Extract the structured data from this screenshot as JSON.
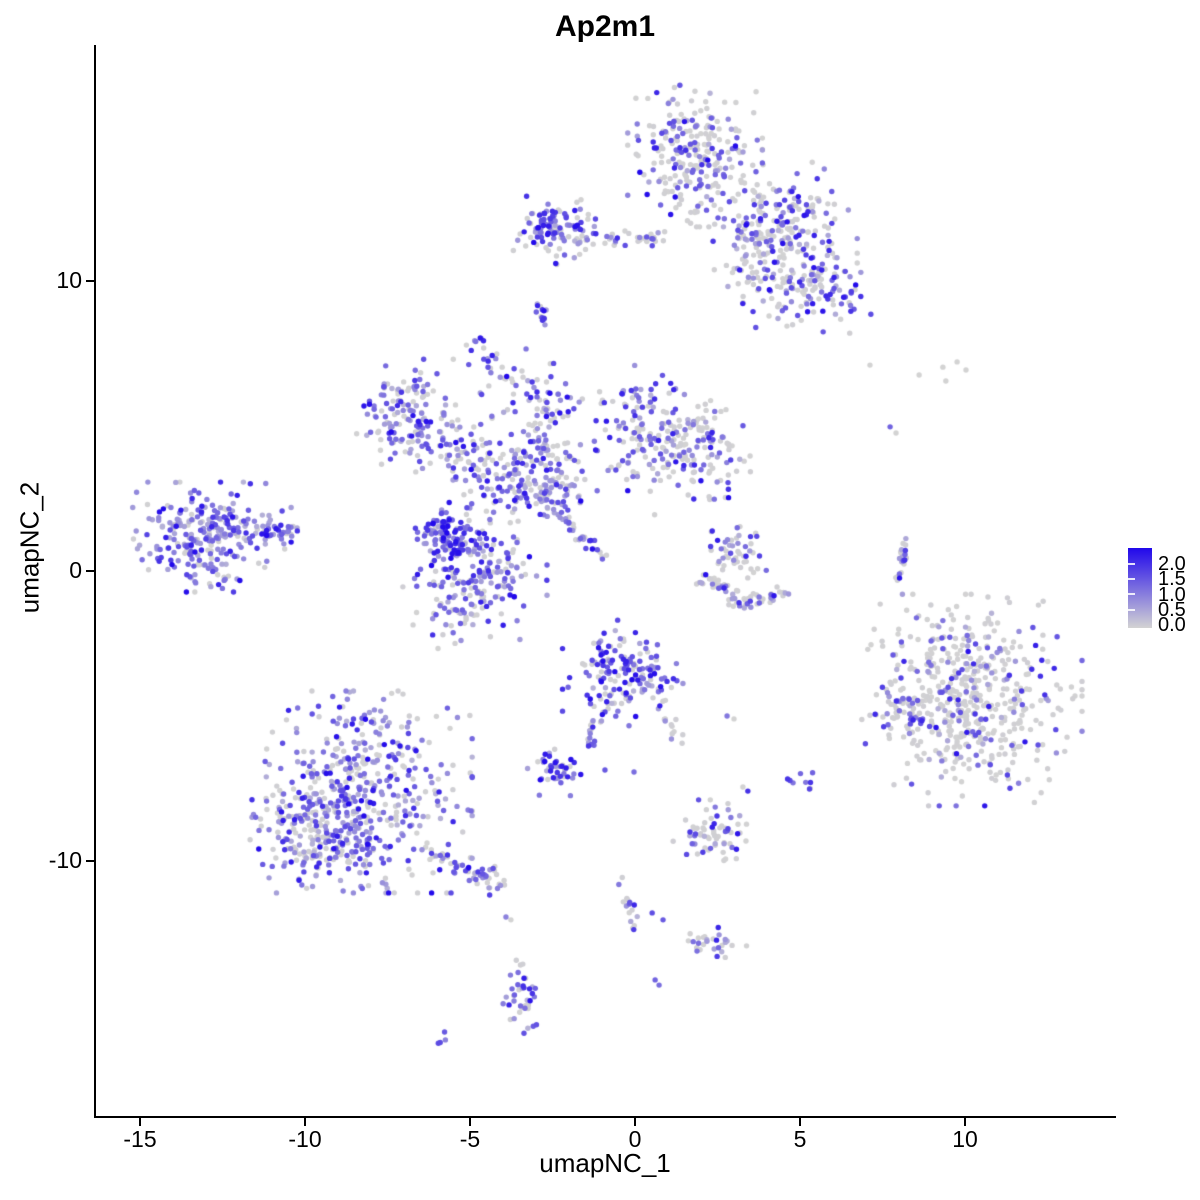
{
  "title": "Ap2m1",
  "axes": {
    "x": {
      "label": "umapNC_1",
      "tick_labels": [
        "-15",
        "-10",
        "-5",
        "0",
        "5",
        "10"
      ]
    },
    "y": {
      "label": "umapNC_2",
      "tick_labels": [
        "10",
        "0",
        "-10"
      ]
    }
  },
  "legend": {
    "tick_labels": [
      "2.0",
      "1.5",
      "1.0",
      "0.5",
      "0.0"
    ],
    "low_color": "#d3d3d3",
    "high_color": "#2108eb"
  },
  "chart_data": {
    "type": "scatter",
    "title": "Ap2m1",
    "xlabel": "umapNC_1",
    "ylabel": "umapNC_2",
    "xlim": [
      -16.4,
      14.5
    ],
    "ylim": [
      -18.8,
      18.1
    ],
    "x_ticks": [
      -15,
      -10,
      -5,
      0,
      5,
      10
    ],
    "y_ticks": [
      10,
      0,
      -10
    ],
    "grid": false,
    "legend_position": "right",
    "axis_color": "#000000",
    "background": "#ffffff",
    "color_scale": {
      "low_value": 0.0,
      "high_value": 2.0,
      "low_color": "#d3d3d3",
      "high_color": "#2108eb"
    },
    "point_radius_px": 2.7,
    "seed": 20,
    "expr_buckets": [
      [
        0.0,
        0.05
      ],
      [
        0.3,
        0.75
      ],
      [
        0.8,
        1.35
      ],
      [
        1.4,
        2.0
      ]
    ],
    "blob_format": [
      "cx",
      "cy",
      "sx",
      "sy",
      "n",
      "expr_mix(zero,low,mid,high)"
    ],
    "blobs": [
      [
        1.82,
        14.34,
        0.85,
        1.03,
        260,
        [
          0.55,
          0.18,
          0.19,
          0.08
        ]
      ],
      [
        4.55,
        12.03,
        0.91,
        0.86,
        170,
        [
          0.45,
          0.15,
          0.25,
          0.15
        ]
      ],
      [
        5.0,
        9.69,
        0.91,
        0.62,
        120,
        [
          0.48,
          0.15,
          0.22,
          0.15
        ]
      ],
      [
        3.64,
        10.9,
        0.61,
        0.62,
        60,
        [
          0.55,
          0.2,
          0.15,
          0.1
        ]
      ],
      [
        -2.27,
        11.76,
        0.61,
        0.52,
        100,
        [
          0.3,
          0.2,
          0.3,
          0.2
        ]
      ],
      [
        -2.73,
        12.03,
        0.18,
        0.28,
        25,
        [
          0.08,
          0.15,
          0.35,
          0.42
        ]
      ],
      [
        -4.61,
        7.55,
        0.24,
        0.38,
        16,
        [
          0.3,
          0.2,
          0.3,
          0.2
        ]
      ],
      [
        -6.97,
        5.48,
        0.61,
        0.76,
        120,
        [
          0.33,
          0.25,
          0.3,
          0.12
        ]
      ],
      [
        -5.45,
        4.24,
        0.85,
        0.62,
        90,
        [
          0.45,
          0.25,
          0.2,
          0.1
        ]
      ],
      [
        -2.73,
        4.86,
        0.42,
        1.1,
        85,
        [
          0.4,
          0.2,
          0.3,
          0.1
        ]
      ],
      [
        0.15,
        4.93,
        0.91,
        0.9,
        130,
        [
          0.45,
          0.2,
          0.25,
          0.1
        ]
      ],
      [
        1.97,
        4.1,
        0.79,
        0.9,
        130,
        [
          0.5,
          0.2,
          0.2,
          0.1
        ]
      ],
      [
        -3.33,
        3.07,
        0.91,
        0.83,
        170,
        [
          0.3,
          0.25,
          0.3,
          0.15
        ]
      ],
      [
        -5.52,
        1.21,
        0.52,
        0.48,
        110,
        [
          0.08,
          0.15,
          0.35,
          0.42
        ]
      ],
      [
        -4.85,
        -0.03,
        0.91,
        0.76,
        150,
        [
          0.3,
          0.25,
          0.3,
          0.15
        ]
      ],
      [
        -5.06,
        -1.52,
        0.79,
        0.48,
        45,
        [
          0.4,
          0.25,
          0.25,
          0.1
        ]
      ],
      [
        -3.79,
        6.41,
        0.61,
        0.52,
        25,
        [
          0.4,
          0.2,
          0.3,
          0.1
        ]
      ],
      [
        -12.82,
        1.17,
        1.0,
        0.79,
        270,
        [
          0.2,
          0.33,
          0.35,
          0.12
        ]
      ],
      [
        3.09,
        0.83,
        0.39,
        0.45,
        40,
        [
          0.5,
          0.15,
          0.2,
          0.15
        ]
      ],
      [
        10.21,
        -4.45,
        1.39,
        1.52,
        520,
        [
          0.72,
          0.1,
          0.12,
          0.06
        ]
      ],
      [
        8.12,
        -4.86,
        0.36,
        0.48,
        40,
        [
          0.6,
          0.15,
          0.15,
          0.1
        ]
      ],
      [
        -0.3,
        -3.59,
        0.79,
        0.79,
        160,
        [
          0.35,
          0.15,
          0.3,
          0.2
        ]
      ],
      [
        -2.33,
        -6.93,
        0.39,
        0.34,
        45,
        [
          0.25,
          0.2,
          0.3,
          0.25
        ]
      ],
      [
        -8.27,
        -7.62,
        1.39,
        1.45,
        460,
        [
          0.35,
          0.25,
          0.28,
          0.12
        ]
      ],
      [
        -9.48,
        -9.34,
        0.91,
        0.76,
        150,
        [
          0.4,
          0.25,
          0.25,
          0.1
        ]
      ],
      [
        2.33,
        -9.14,
        0.52,
        0.52,
        65,
        [
          0.55,
          0.15,
          0.18,
          0.12
        ]
      ],
      [
        5.09,
        -7.28,
        0.24,
        0.28,
        9,
        [
          0.1,
          0.3,
          0.4,
          0.2
        ]
      ],
      [
        2.3,
        -12.72,
        0.45,
        0.31,
        28,
        [
          0.5,
          0.2,
          0.2,
          0.1
        ]
      ],
      [
        -3.42,
        -14.45,
        0.24,
        0.62,
        40,
        [
          0.4,
          0.2,
          0.25,
          0.15
        ]
      ],
      [
        -6.0,
        -16.17,
        0.12,
        0.12,
        4,
        [
          0.15,
          0.3,
          0.55,
          0.0
        ]
      ]
    ],
    "line_format": [
      "x1",
      "y1",
      "x2",
      "y2",
      "n",
      "expr_mix",
      "jitter"
    ],
    "lines": [
      [
        -0.7,
        11.41,
        0.85,
        11.52,
        30,
        [
          0.45,
          0.2,
          0.25,
          0.1
        ],
        0.12
      ],
      [
        -2.94,
        9.34,
        -2.67,
        8.31,
        14,
        [
          0.35,
          0.25,
          0.25,
          0.15
        ],
        0.08
      ],
      [
        -2.52,
        2.28,
        -1.0,
        0.48,
        30,
        [
          0.3,
          0.4,
          0.25,
          0.05
        ],
        0.1
      ],
      [
        -11.42,
        1.34,
        -10.45,
        1.41,
        35,
        [
          0.1,
          0.3,
          0.4,
          0.2
        ],
        0.12
      ],
      [
        1.97,
        -0.21,
        3.27,
        -1.07,
        40,
        [
          0.65,
          0.15,
          0.12,
          0.08
        ],
        0.15
      ],
      [
        3.27,
        -1.07,
        4.61,
        -0.76,
        30,
        [
          0.65,
          0.15,
          0.12,
          0.08
        ],
        0.12
      ],
      [
        2.42,
        0.38,
        4.03,
        -0.03,
        10,
        [
          0.85,
          0.1,
          0.05,
          0.0
        ],
        0.15
      ],
      [
        8.27,
        1.21,
        7.91,
        -0.45,
        22,
        [
          0.3,
          0.2,
          0.3,
          0.2
        ],
        0.08
      ],
      [
        -1.0,
        -4.86,
        -1.52,
        -6.1,
        18,
        [
          0.4,
          0.3,
          0.2,
          0.1
        ],
        0.1
      ],
      [
        0.76,
        -4.45,
        1.3,
        -5.9,
        16,
        [
          0.5,
          0.2,
          0.2,
          0.1
        ],
        0.1
      ],
      [
        -6.27,
        -9.69,
        -4.03,
        -10.79,
        60,
        [
          0.35,
          0.25,
          0.25,
          0.15
        ],
        0.2
      ],
      [
        -0.45,
        -10.52,
        -0.03,
        -12.31,
        18,
        [
          0.45,
          0.2,
          0.2,
          0.15
        ],
        0.1
      ]
    ],
    "single_format": [
      "x",
      "y",
      "value"
    ],
    "singles": [
      [
        7.12,
        7.1,
        0
      ],
      [
        8.61,
        6.76,
        0
      ],
      [
        9.42,
        6.55,
        0
      ],
      [
        9.76,
        7.21,
        0
      ],
      [
        10.03,
        6.93,
        0
      ],
      [
        9.33,
        7.03,
        0
      ],
      [
        7.73,
        4.97,
        1.1
      ],
      [
        7.91,
        4.76,
        0
      ],
      [
        -0.91,
        -6.86,
        1.2
      ],
      [
        -0.03,
        -6.93,
        1.0
      ],
      [
        2.79,
        -5.0,
        0.9
      ],
      [
        3.0,
        -5.1,
        0
      ],
      [
        3.42,
        -7.59,
        1.6
      ],
      [
        3.27,
        -7.45,
        0
      ],
      [
        0.52,
        -11.79,
        1.3
      ],
      [
        0.85,
        -12.03,
        1.2
      ],
      [
        0.61,
        -14.1,
        1.1
      ],
      [
        0.73,
        -14.28,
        1.0
      ],
      [
        -3.91,
        -11.93,
        0.8
      ],
      [
        -3.76,
        -12.03,
        0
      ],
      [
        -5.7,
        1.31,
        2.0
      ]
    ]
  }
}
